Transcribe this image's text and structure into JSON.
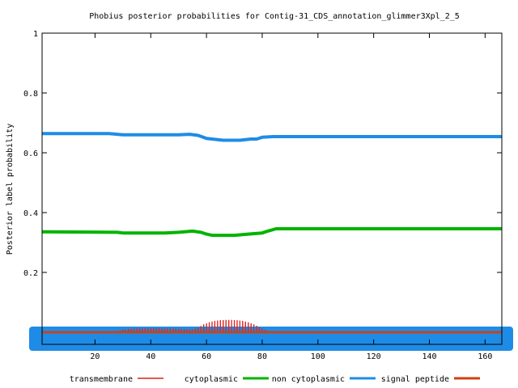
{
  "chart_data": {
    "type": "line",
    "title": "Phobius posterior probabilities for Contig-31_CDS_annotation_glimmer3Xpl_2_5",
    "xlabel": "",
    "ylabel": "Posterior label probability",
    "xlim": [
      1,
      166
    ],
    "ylim": [
      0,
      1
    ],
    "x_ticks": [
      20,
      40,
      60,
      80,
      100,
      120,
      140,
      160
    ],
    "y_ticks": [
      0.2,
      0.4,
      0.6,
      0.8,
      1
    ],
    "y_tick_labels": [
      "0.2",
      "0.4",
      "0.6",
      "0.8",
      "1"
    ],
    "legend_placement": "bottom",
    "grid": false,
    "series": [
      {
        "name": "transmembrane",
        "style": "impulses",
        "color": "#e0201c",
        "points": [
          [
            1,
            0
          ],
          [
            25,
            0
          ],
          [
            28,
            0.004
          ],
          [
            30,
            0.008
          ],
          [
            33,
            0.011
          ],
          [
            36,
            0.013
          ],
          [
            40,
            0.013
          ],
          [
            44,
            0.013
          ],
          [
            48,
            0.012
          ],
          [
            52,
            0.01
          ],
          [
            55,
            0.009
          ],
          [
            57,
            0.015
          ],
          [
            59,
            0.026
          ],
          [
            61,
            0.033
          ],
          [
            63,
            0.038
          ],
          [
            65,
            0.04
          ],
          [
            67,
            0.041
          ],
          [
            69,
            0.041
          ],
          [
            71,
            0.04
          ],
          [
            73,
            0.038
          ],
          [
            75,
            0.033
          ],
          [
            77,
            0.026
          ],
          [
            79,
            0.017
          ],
          [
            81,
            0.008
          ],
          [
            83,
            0.002
          ],
          [
            84,
            0
          ],
          [
            166,
            0
          ]
        ]
      },
      {
        "name": "cytoplasmic",
        "style": "line",
        "color": "#00b400",
        "points": [
          [
            1,
            0.336
          ],
          [
            28,
            0.334
          ],
          [
            30,
            0.332
          ],
          [
            45,
            0.332
          ],
          [
            50,
            0.334
          ],
          [
            55,
            0.338
          ],
          [
            58,
            0.334
          ],
          [
            60,
            0.328
          ],
          [
            62,
            0.324
          ],
          [
            70,
            0.324
          ],
          [
            75,
            0.328
          ],
          [
            80,
            0.332
          ],
          [
            82,
            0.338
          ],
          [
            85,
            0.346
          ],
          [
            166,
            0.346
          ]
        ]
      },
      {
        "name": "non cytoplasmic",
        "style": "line",
        "color": "#1e8ce6",
        "points": [
          [
            1,
            0.664
          ],
          [
            25,
            0.664
          ],
          [
            28,
            0.662
          ],
          [
            30,
            0.66
          ],
          [
            50,
            0.66
          ],
          [
            54,
            0.662
          ],
          [
            57,
            0.658
          ],
          [
            60,
            0.648
          ],
          [
            64,
            0.644
          ],
          [
            66,
            0.642
          ],
          [
            72,
            0.642
          ],
          [
            76,
            0.646
          ],
          [
            78,
            0.646
          ],
          [
            80,
            0.652
          ],
          [
            84,
            0.654
          ],
          [
            166,
            0.654
          ]
        ]
      },
      {
        "name": "signal peptide",
        "style": "line",
        "color": "#d04010",
        "points": [
          [
            1,
            0
          ],
          [
            166,
            0
          ]
        ]
      }
    ]
  }
}
